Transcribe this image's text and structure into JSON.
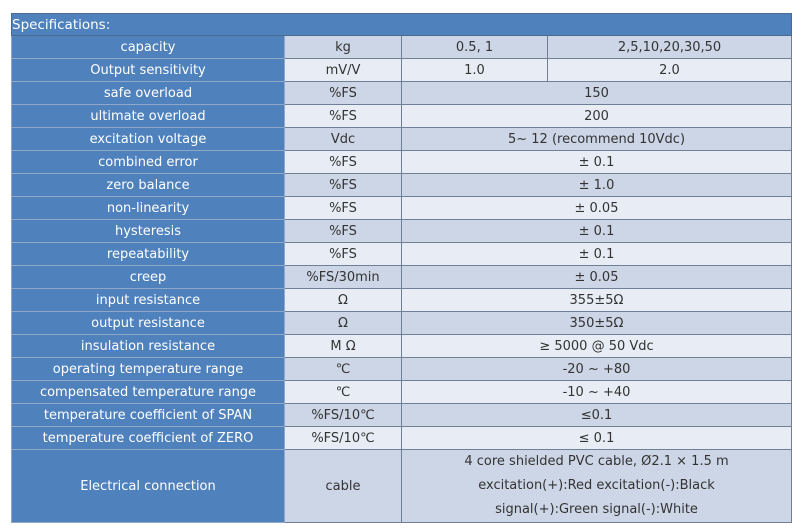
{
  "title": "Specifications:",
  "capacity": {
    "label": "capacity",
    "unit": "kg",
    "v1": "0.5, 1",
    "v2": "2,5,10,20,30,50"
  },
  "sensitivity": {
    "label": "Output sensitivity",
    "unit": "mV/V",
    "v1": "1.0",
    "v2": "2.0"
  },
  "rows": [
    {
      "label": "safe overload",
      "unit": "%FS",
      "value": "150"
    },
    {
      "label": "ultimate overload",
      "unit": "%FS",
      "value": "200"
    },
    {
      "label": "excitation voltage",
      "unit": "Vdc",
      "value": "5~ 12 (recommend 10Vdc)"
    },
    {
      "label": "combined error",
      "unit": "%FS",
      "value": "± 0.1"
    },
    {
      "label": "zero balance",
      "unit": "%FS",
      "value": "± 1.0"
    },
    {
      "label": "non-linearity",
      "unit": "%FS",
      "value": "± 0.05"
    },
    {
      "label": "hysteresis",
      "unit": "%FS",
      "value": "± 0.1"
    },
    {
      "label": "repeatability",
      "unit": "%FS",
      "value": "± 0.1"
    },
    {
      "label": "creep",
      "unit": "%FS/30min",
      "value": "± 0.05"
    },
    {
      "label": "input resistance",
      "unit": "Ω",
      "value": "355±5Ω"
    },
    {
      "label": "output resistance",
      "unit": "Ω",
      "value": "350±5Ω"
    },
    {
      "label": "insulation resistance",
      "unit": "M Ω",
      "value": "≥ 5000 @ 50 Vdc"
    },
    {
      "label": "operating temperature range",
      "unit": "℃",
      "value": "-20 ~ +80"
    },
    {
      "label": "compensated temperature range",
      "unit": "℃",
      "value": "-10 ~ +40"
    },
    {
      "label": "temperature coefficient of SPAN",
      "unit": "%FS/10℃",
      "value": "≤0.1"
    },
    {
      "label": "temperature coefficient of ZERO",
      "unit": "%FS/10℃",
      "value": "≤ 0.1"
    }
  ],
  "electrical": {
    "label": "Electrical connection",
    "unit": "cable",
    "lines": [
      "4 core shielded PVC cable, Ø2.1 × 1.5 m",
      "excitation(+):Red excitation(-):Black",
      "signal(+):Green  signal(-):White"
    ]
  }
}
